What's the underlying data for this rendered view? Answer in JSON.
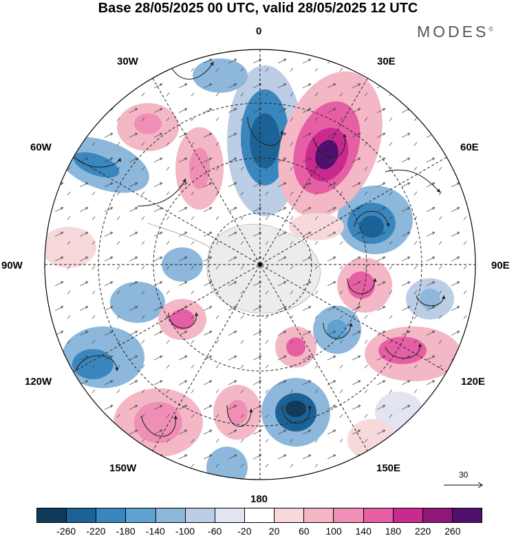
{
  "title": "Base 28/05/2025 00 UTC, valid 28/05/2025 12 UTC",
  "brand": "MODES",
  "brand_mark": "©",
  "longitude_labels": {
    "lon_0": "0",
    "lon_30e": "30E",
    "lon_60e": "60E",
    "lon_90e": "90E",
    "lon_120e": "120E",
    "lon_150e": "150E",
    "lon_180": "180",
    "lon_150w": "150W",
    "lon_120w": "120W",
    "lon_90w": "90W",
    "lon_60w": "60W",
    "lon_30w": "30W"
  },
  "reference_vector": "30",
  "colorbar": {
    "colors": [
      "#0f3a5a",
      "#1b6396",
      "#3a87bf",
      "#5fa2cf",
      "#8db8dc",
      "#bccde6",
      "#e2e5f1",
      "#ffffff",
      "#f7d9dc",
      "#f3b7c6",
      "#ef8fb5",
      "#e65ea4",
      "#c92a8e",
      "#8f1777",
      "#52106e"
    ],
    "ticks": [
      "-260",
      "-220",
      "-180",
      "-140",
      "-100",
      "-60",
      "-20",
      "20",
      "60",
      "100",
      "140",
      "180",
      "220",
      "260"
    ]
  }
}
